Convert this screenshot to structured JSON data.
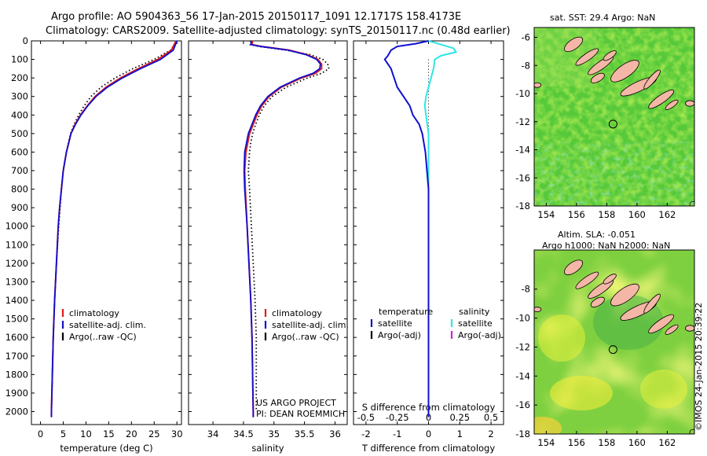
{
  "figure": {
    "title_line1": "Argo profile: AO 5904363_56 17-Jan-2015 20150117_1091 12.1717S 158.4173E",
    "title_line2": "Climatology: CARS2009. Satellite-adjusted climatology: synTS_20150117.nc (0.48d earlier)",
    "credit_line1": "US ARGO PROJECT",
    "credit_line2": "PI: DEAN ROEMMICH",
    "timestamp": "©IMOS 24-Jan-2015 20:39:22"
  },
  "colors": {
    "climatology": "#e01b1b",
    "satellite": "#1010d0",
    "argo": "#000000",
    "salinity_satellite": "#2ee6e6",
    "salinity_argo": "#d020d0",
    "land": "#f4b6a6"
  },
  "chart_data": [
    {
      "type": "line",
      "xlabel": "temperature (deg C)",
      "ylabel": "",
      "xlim": [
        -2,
        31
      ],
      "ylim": [
        2070,
        0
      ],
      "xticks": [
        0,
        5,
        10,
        15,
        20,
        25,
        30
      ],
      "yticks": [
        0,
        100,
        200,
        300,
        400,
        500,
        600,
        700,
        800,
        900,
        1000,
        1100,
        1200,
        1300,
        1400,
        1500,
        1600,
        1700,
        1800,
        1900,
        2000
      ],
      "legend": [
        "climatology",
        "satellite-adj. clim.",
        "Argo(..raw -QC)"
      ],
      "series": [
        {
          "name": "climatology",
          "depth": [
            0,
            50,
            100,
            150,
            200,
            250,
            300,
            350,
            400,
            450,
            500,
            600,
            700,
            800,
            900,
            1000,
            1200,
            1400,
            1600,
            1800,
            2000,
            2030
          ],
          "values": [
            29.8,
            28.8,
            25.8,
            21.5,
            17.6,
            14.4,
            12.0,
            10.3,
            8.8,
            7.6,
            6.7,
            5.7,
            5.0,
            4.6,
            4.2,
            3.9,
            3.5,
            3.1,
            2.8,
            2.6,
            2.4,
            2.4
          ]
        },
        {
          "name": "satellite-adj. clim.",
          "depth": [
            0,
            50,
            100,
            150,
            200,
            250,
            300,
            350,
            400,
            450,
            500,
            600,
            700,
            800,
            900,
            1000,
            1200,
            1400,
            1600,
            1800,
            2000,
            2030
          ],
          "values": [
            30.0,
            29.2,
            26.4,
            22.0,
            18.0,
            14.7,
            12.2,
            10.4,
            8.9,
            7.7,
            6.7,
            5.7,
            5.0,
            4.6,
            4.2,
            3.9,
            3.5,
            3.1,
            2.8,
            2.6,
            2.4,
            2.4
          ]
        },
        {
          "name": "Argo(..raw -QC)",
          "depth": [
            0,
            50,
            100,
            150,
            200,
            250,
            300,
            350,
            400,
            450,
            500,
            600,
            700,
            800,
            900,
            1000,
            1200,
            1400,
            1600,
            1800,
            2000
          ],
          "values": [
            30.0,
            28.6,
            25.0,
            20.3,
            16.4,
            13.3,
            11.1,
            9.6,
            8.4,
            7.4,
            6.6,
            5.7,
            5.0,
            4.6,
            4.3,
            4.0,
            3.5,
            3.1,
            2.8,
            2.6,
            2.4
          ]
        }
      ]
    },
    {
      "type": "line",
      "xlabel": "salinity",
      "ylabel": "",
      "xlim": [
        33.6,
        36.2
      ],
      "ylim": [
        2070,
        0
      ],
      "xticks": [
        34,
        34.5,
        35,
        35.5,
        36
      ],
      "legend": [
        "climatology",
        "satellite-adj. clim.",
        "Argo(..raw -QC)"
      ],
      "series": [
        {
          "name": "climatology",
          "depth": [
            0,
            20,
            30,
            50,
            75,
            100,
            125,
            150,
            175,
            200,
            250,
            300,
            350,
            400,
            450,
            500,
            550,
            600,
            700,
            800,
            1000,
            1200,
            1400,
            1600,
            1800,
            2000,
            2030
          ],
          "values": [
            34.65,
            34.64,
            34.8,
            35.25,
            35.55,
            35.72,
            35.78,
            35.78,
            35.68,
            35.45,
            35.12,
            34.92,
            34.8,
            34.72,
            34.66,
            34.6,
            34.57,
            34.54,
            34.52,
            34.53,
            34.56,
            34.59,
            34.62,
            34.64,
            34.65,
            34.66,
            34.66
          ]
        },
        {
          "name": "satellite-adj. clim.",
          "depth": [
            0,
            20,
            30,
            50,
            75,
            100,
            125,
            150,
            175,
            200,
            250,
            300,
            350,
            400,
            450,
            500,
            550,
            600,
            700,
            800,
            1000,
            1200,
            1400,
            1600,
            1800,
            2000,
            2030
          ],
          "values": [
            34.63,
            34.62,
            34.78,
            35.23,
            35.53,
            35.7,
            35.76,
            35.75,
            35.64,
            35.42,
            35.1,
            34.9,
            34.78,
            34.7,
            34.64,
            34.58,
            34.55,
            34.52,
            34.51,
            34.52,
            34.56,
            34.59,
            34.62,
            34.64,
            34.65,
            34.66,
            34.66
          ]
        },
        {
          "name": "Argo(..raw -QC)",
          "depth": [
            0,
            20,
            30,
            50,
            75,
            100,
            125,
            150,
            175,
            200,
            250,
            300,
            350,
            400,
            450,
            500,
            550,
            600,
            700,
            800,
            1000,
            1200,
            1400,
            1600,
            1800,
            2000
          ],
          "values": [
            34.62,
            34.61,
            34.75,
            35.2,
            35.6,
            35.8,
            35.88,
            35.9,
            35.78,
            35.55,
            35.2,
            34.97,
            34.84,
            34.76,
            34.7,
            34.65,
            34.62,
            34.6,
            34.58,
            34.6,
            34.63,
            34.66,
            34.69,
            34.71,
            34.71,
            34.71
          ]
        }
      ]
    },
    {
      "type": "line",
      "xlabel": "T difference from climatology",
      "xlabel_top": "S difference from climatology",
      "xlim": [
        -2.4,
        2.4
      ],
      "ylim": [
        2070,
        0
      ],
      "xticks": [
        -2,
        -1,
        0,
        1,
        2
      ],
      "xticks_top": [
        -0.5,
        -0.25,
        0,
        0.25,
        0.5
      ],
      "legend_temperature": {
        "title": "temperature",
        "items": [
          "satellite",
          "Argo(-adj)"
        ]
      },
      "legend_salinity": {
        "title": "salinity",
        "items": [
          "satellite",
          "Argo(-adj)"
        ]
      },
      "series": [
        {
          "name": "satellite",
          "quantity": "temperature",
          "depth": [
            0,
            15,
            30,
            50,
            80,
            100,
            150,
            200,
            250,
            300,
            350,
            400,
            450,
            500,
            600,
            700,
            800,
            1000,
            1200,
            1400,
            1600,
            1800,
            2000,
            2030
          ],
          "values": [
            0.0,
            -0.4,
            -1.0,
            -1.2,
            -1.3,
            -1.4,
            -1.2,
            -1.1,
            -1.0,
            -0.8,
            -0.6,
            -0.5,
            -0.3,
            -0.2,
            -0.1,
            -0.05,
            0.0,
            0.0,
            0.0,
            0.0,
            0.0,
            0.0,
            0.0,
            0.0
          ]
        },
        {
          "name": "satellite",
          "quantity": "salinity",
          "depth": [
            0,
            20,
            40,
            60,
            80,
            100,
            150,
            200,
            250,
            300,
            350,
            400,
            450,
            500,
            600,
            700,
            800,
            1000,
            1200,
            1400,
            1600,
            1800,
            2000,
            2030
          ],
          "values": [
            0.0,
            0.1,
            0.2,
            0.22,
            0.1,
            0.05,
            0.04,
            0.02,
            0.0,
            -0.02,
            -0.03,
            -0.02,
            -0.01,
            0.0,
            0.0,
            0.0,
            0.0,
            0.0,
            0.0,
            0.0,
            0.0,
            0.0,
            0.0,
            0.0
          ]
        },
        {
          "name": "Argo(-adj)",
          "quantity": "temperature",
          "depth": [
            50,
            2030
          ],
          "values": [
            0.0,
            0.0
          ]
        }
      ]
    },
    {
      "type": "heatmap",
      "title": "sat. SST: 29.4  Argo: NaN",
      "xlim": [
        153.2,
        163.8
      ],
      "ylim": [
        -18,
        -5.3
      ],
      "xticks": [
        154,
        156,
        158,
        160,
        162
      ],
      "yticks": [
        -6,
        -8,
        -10,
        -12,
        -14,
        -16,
        -18
      ],
      "marker": {
        "lon": 158.4173,
        "lat": -12.1717
      }
    },
    {
      "type": "heatmap",
      "title_line1": "Altim. SLA: -0.051",
      "title_line2": "Argo h1000: NaN  h2000: NaN",
      "xlim": [
        153.2,
        163.8
      ],
      "ylim": [
        -18,
        -5.3
      ],
      "xticks": [
        154,
        156,
        158,
        160,
        162
      ],
      "yticks": [
        -8,
        -10,
        -12,
        -14,
        -16,
        -18
      ],
      "marker": {
        "lon": 158.4173,
        "lat": -12.1717
      }
    }
  ]
}
